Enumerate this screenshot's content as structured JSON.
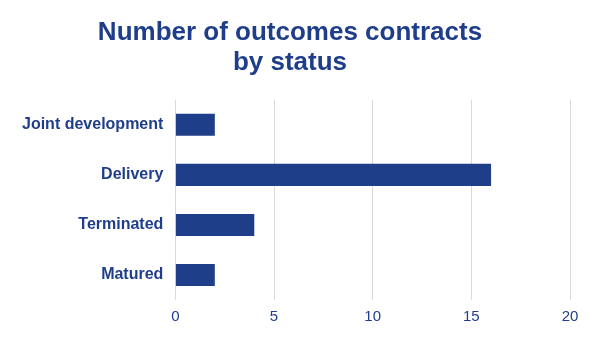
{
  "chart_data": {
    "type": "bar",
    "orientation": "horizontal",
    "title": [
      "Number of outcomes contracts",
      "by status"
    ],
    "categories": [
      "Joint development",
      "Delivery",
      "Terminated",
      "Matured"
    ],
    "values": [
      2,
      16,
      4,
      2
    ],
    "color": "#1f3e8a",
    "xlim": [
      0,
      20
    ],
    "xticks": [
      0,
      5,
      10,
      15,
      20
    ],
    "grid": true
  }
}
